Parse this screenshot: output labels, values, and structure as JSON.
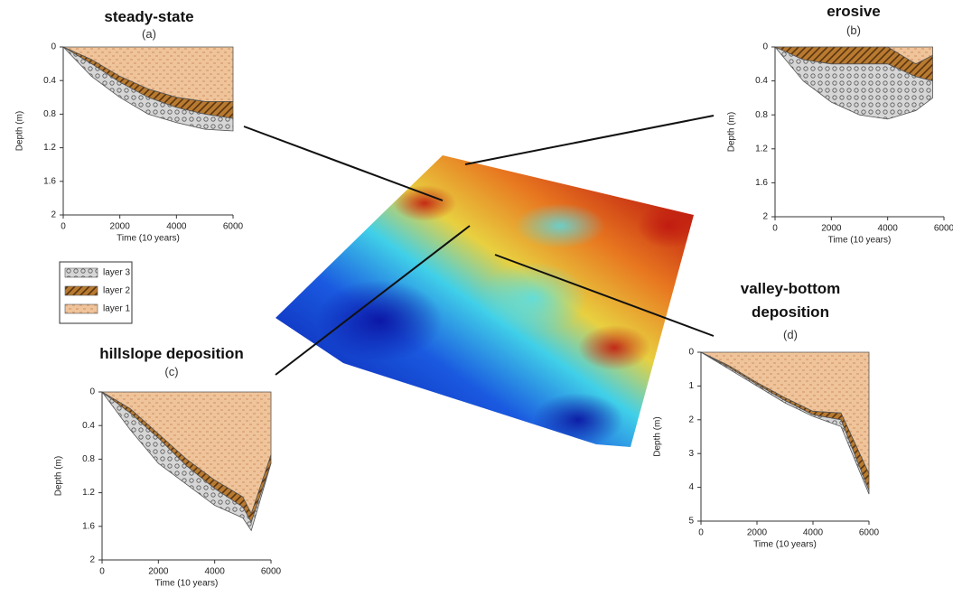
{
  "chart_data": [
    {
      "type": "area",
      "title": "steady-state",
      "subtitle": "(a)",
      "x_label": "Time (10 years)",
      "y_label": "Depth (m)",
      "x": [
        0,
        1000,
        2000,
        3000,
        4000,
        5000,
        6000
      ],
      "series": [
        {
          "name": "layer 1",
          "color": "#f0c49a",
          "pattern": "dashes",
          "values": [
            0,
            0.15,
            0.35,
            0.5,
            0.6,
            0.65,
            0.65
          ]
        },
        {
          "name": "layer 2",
          "color": "#b87a30",
          "pattern": "hatch",
          "values": [
            0,
            0.05,
            0.07,
            0.1,
            0.12,
            0.15,
            0.2
          ]
        },
        {
          "name": "layer 3",
          "color": "#d6d6d6",
          "pattern": "circles",
          "values": [
            0,
            0.15,
            0.18,
            0.2,
            0.18,
            0.18,
            0.15
          ]
        }
      ],
      "xlim": [
        0,
        6000
      ],
      "ylim": [
        0,
        2
      ],
      "y_inverted": true,
      "xticks": [
        0,
        2000,
        4000,
        6000
      ],
      "yticks": [
        0,
        0.4,
        0.8,
        1.2,
        1.6,
        2
      ]
    },
    {
      "type": "area",
      "title": "erosive",
      "subtitle": "(b)",
      "x_label": "Time (10 years)",
      "y_label": "Depth (m)",
      "x": [
        0,
        1000,
        2000,
        3000,
        4000,
        5000,
        5600
      ],
      "series": [
        {
          "color": "#f0c49a",
          "pattern": "dashes",
          "values": [
            0,
            0,
            0,
            0,
            0,
            0.2,
            0.1
          ]
        },
        {
          "color": "#b87a30",
          "pattern": "hatch",
          "values": [
            0,
            0.15,
            0.2,
            0.2,
            0.2,
            0.15,
            0.3
          ]
        },
        {
          "color": "#d6d6d6",
          "pattern": "circles",
          "values": [
            0,
            0.25,
            0.45,
            0.6,
            0.65,
            0.4,
            0.2
          ]
        }
      ],
      "xlim": [
        0,
        6000
      ],
      "ylim": [
        0,
        2
      ],
      "y_inverted": true,
      "xticks": [
        0,
        2000,
        4000,
        6000
      ],
      "yticks": [
        0,
        0.4,
        0.8,
        1.2,
        1.6,
        2
      ]
    },
    {
      "type": "area",
      "title": "hillslope deposition",
      "subtitle": "(c)",
      "x_label": "Time (10 years)",
      "y_label": "Depth (m)",
      "x": [
        0,
        1000,
        2000,
        3000,
        4000,
        5000,
        5300,
        6000
      ],
      "series": [
        {
          "color": "#f0c49a",
          "pattern": "dashes",
          "values": [
            0,
            0.2,
            0.5,
            0.8,
            1.05,
            1.25,
            1.45,
            0.75
          ]
        },
        {
          "color": "#b87a30",
          "pattern": "hatch",
          "values": [
            0,
            0.05,
            0.05,
            0.08,
            0.1,
            0.12,
            0.1,
            0.1
          ]
        },
        {
          "color": "#d6d6d6",
          "pattern": "circles",
          "values": [
            0,
            0.2,
            0.3,
            0.22,
            0.2,
            0.13,
            0.1,
            0
          ]
        }
      ],
      "xlim": [
        0,
        6000
      ],
      "ylim": [
        0,
        2
      ],
      "y_inverted": true,
      "xticks": [
        0,
        2000,
        4000,
        6000
      ],
      "yticks": [
        0,
        0.4,
        0.8,
        1.2,
        1.6,
        2
      ]
    },
    {
      "type": "area",
      "title": "valley-bottom deposition",
      "subtitle": "(d)",
      "x_label": "Time (10 years)",
      "y_label": "Depth (m)",
      "x": [
        0,
        1000,
        2000,
        3000,
        4000,
        5000,
        6000
      ],
      "series": [
        {
          "color": "#f0c49a",
          "pattern": "dashes",
          "values": [
            0,
            0.4,
            0.9,
            1.35,
            1.75,
            1.8,
            3.6
          ]
        },
        {
          "color": "#b87a30",
          "pattern": "hatch",
          "values": [
            0,
            0.05,
            0.05,
            0.08,
            0.1,
            0.2,
            0.5
          ]
        },
        {
          "color": "#d6d6d6",
          "pattern": "circles",
          "values": [
            0,
            0.05,
            0.05,
            0.07,
            0.05,
            0.2,
            0.1
          ]
        }
      ],
      "xlim": [
        0,
        6000
      ],
      "ylim": [
        0,
        5
      ],
      "y_inverted": true,
      "xticks": [
        0,
        2000,
        4000,
        6000
      ],
      "yticks": [
        0,
        1,
        2,
        3,
        4,
        5
      ]
    }
  ]
}
